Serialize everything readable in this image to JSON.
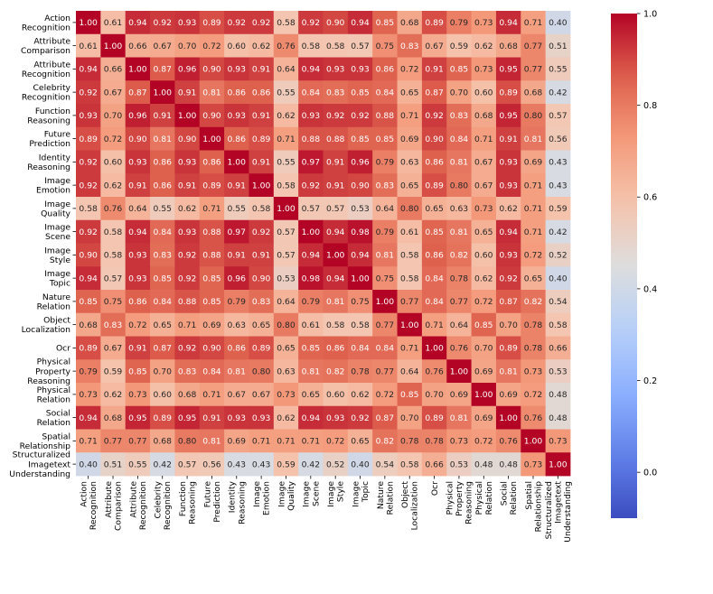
{
  "chart_data": {
    "type": "heatmap",
    "title": "",
    "xlabel": "",
    "ylabel": "",
    "labels": [
      [
        "Action",
        "Recognition"
      ],
      [
        "Attribute",
        "Comparison"
      ],
      [
        "Attribute",
        "Recognition"
      ],
      [
        "Celebrity",
        "Recognition"
      ],
      [
        "Function",
        "Reasoning"
      ],
      [
        "Future",
        "Prediction"
      ],
      [
        "Identity",
        "Reasoning"
      ],
      [
        "Image",
        "Emotion"
      ],
      [
        "Image",
        "Quality"
      ],
      [
        "Image",
        "Scene"
      ],
      [
        "Image",
        "Style"
      ],
      [
        "Image",
        "Topic"
      ],
      [
        "Nature",
        "Relation"
      ],
      [
        "Object",
        "Localization"
      ],
      [
        "Ocr"
      ],
      [
        "Physical",
        "Property",
        "Reasoning"
      ],
      [
        "Physical",
        "Relation"
      ],
      [
        "Social",
        "Relation"
      ],
      [
        "Spatial",
        "Relationship"
      ],
      [
        "Structuralized",
        "Imagetext",
        "Understanding"
      ]
    ],
    "matrix": [
      [
        1.0,
        0.61,
        0.94,
        0.92,
        0.93,
        0.89,
        0.92,
        0.92,
        0.58,
        0.92,
        0.9,
        0.94,
        0.85,
        0.68,
        0.89,
        0.79,
        0.73,
        0.94,
        0.71,
        0.4
      ],
      [
        0.61,
        1.0,
        0.66,
        0.67,
        0.7,
        0.72,
        0.6,
        0.62,
        0.76,
        0.58,
        0.58,
        0.57,
        0.75,
        0.83,
        0.67,
        0.59,
        0.62,
        0.68,
        0.77,
        0.51
      ],
      [
        0.94,
        0.66,
        1.0,
        0.87,
        0.96,
        0.9,
        0.93,
        0.91,
        0.64,
        0.94,
        0.93,
        0.93,
        0.86,
        0.72,
        0.91,
        0.85,
        0.73,
        0.95,
        0.77,
        0.55
      ],
      [
        0.92,
        0.67,
        0.87,
        1.0,
        0.91,
        0.81,
        0.86,
        0.86,
        0.55,
        0.84,
        0.83,
        0.85,
        0.84,
        0.65,
        0.87,
        0.7,
        0.6,
        0.89,
        0.68,
        0.42
      ],
      [
        0.93,
        0.7,
        0.96,
        0.91,
        1.0,
        0.9,
        0.93,
        0.91,
        0.62,
        0.93,
        0.92,
        0.92,
        0.88,
        0.71,
        0.92,
        0.83,
        0.68,
        0.95,
        0.8,
        0.57
      ],
      [
        0.89,
        0.72,
        0.9,
        0.81,
        0.9,
        1.0,
        0.86,
        0.89,
        0.71,
        0.88,
        0.88,
        0.85,
        0.85,
        0.69,
        0.9,
        0.84,
        0.71,
        0.91,
        0.81,
        0.56
      ],
      [
        0.92,
        0.6,
        0.93,
        0.86,
        0.93,
        0.86,
        1.0,
        0.91,
        0.55,
        0.97,
        0.91,
        0.96,
        0.79,
        0.63,
        0.86,
        0.81,
        0.67,
        0.93,
        0.69,
        0.43
      ],
      [
        0.92,
        0.62,
        0.91,
        0.86,
        0.91,
        0.89,
        0.91,
        1.0,
        0.58,
        0.92,
        0.91,
        0.9,
        0.83,
        0.65,
        0.89,
        0.8,
        0.67,
        0.93,
        0.71,
        0.43
      ],
      [
        0.58,
        0.76,
        0.64,
        0.55,
        0.62,
        0.71,
        0.55,
        0.58,
        1.0,
        0.57,
        0.57,
        0.53,
        0.64,
        0.8,
        0.65,
        0.63,
        0.73,
        0.62,
        0.71,
        0.59
      ],
      [
        0.92,
        0.58,
        0.94,
        0.84,
        0.93,
        0.88,
        0.97,
        0.92,
        0.57,
        1.0,
        0.94,
        0.98,
        0.79,
        0.61,
        0.85,
        0.81,
        0.65,
        0.94,
        0.71,
        0.42
      ],
      [
        0.9,
        0.58,
        0.93,
        0.83,
        0.92,
        0.88,
        0.91,
        0.91,
        0.57,
        0.94,
        1.0,
        0.94,
        0.81,
        0.58,
        0.86,
        0.82,
        0.6,
        0.93,
        0.72,
        0.52
      ],
      [
        0.94,
        0.57,
        0.93,
        0.85,
        0.92,
        0.85,
        0.96,
        0.9,
        0.53,
        0.98,
        0.94,
        1.0,
        0.75,
        0.58,
        0.84,
        0.78,
        0.62,
        0.92,
        0.65,
        0.4
      ],
      [
        0.85,
        0.75,
        0.86,
        0.84,
        0.88,
        0.85,
        0.79,
        0.83,
        0.64,
        0.79,
        0.81,
        0.75,
        1.0,
        0.77,
        0.84,
        0.77,
        0.72,
        0.87,
        0.82,
        0.54
      ],
      [
        0.68,
        0.83,
        0.72,
        0.65,
        0.71,
        0.69,
        0.63,
        0.65,
        0.8,
        0.61,
        0.58,
        0.58,
        0.77,
        1.0,
        0.71,
        0.64,
        0.85,
        0.7,
        0.78,
        0.58
      ],
      [
        0.89,
        0.67,
        0.91,
        0.87,
        0.92,
        0.9,
        0.86,
        0.89,
        0.65,
        0.85,
        0.86,
        0.84,
        0.84,
        0.71,
        1.0,
        0.76,
        0.7,
        0.89,
        0.78,
        0.66
      ],
      [
        0.79,
        0.59,
        0.85,
        0.7,
        0.83,
        0.84,
        0.81,
        0.8,
        0.63,
        0.81,
        0.82,
        0.78,
        0.77,
        0.64,
        0.76,
        1.0,
        0.69,
        0.81,
        0.73,
        0.53
      ],
      [
        0.73,
        0.62,
        0.73,
        0.6,
        0.68,
        0.71,
        0.67,
        0.67,
        0.73,
        0.65,
        0.6,
        0.62,
        0.72,
        0.85,
        0.7,
        0.69,
        1.0,
        0.69,
        0.72,
        0.48
      ],
      [
        0.94,
        0.68,
        0.95,
        0.89,
        0.95,
        0.91,
        0.93,
        0.93,
        0.62,
        0.94,
        0.93,
        0.92,
        0.87,
        0.7,
        0.89,
        0.81,
        0.69,
        1.0,
        0.76,
        0.48
      ],
      [
        0.71,
        0.77,
        0.77,
        0.68,
        0.8,
        0.81,
        0.69,
        0.71,
        0.71,
        0.71,
        0.72,
        0.65,
        0.82,
        0.78,
        0.78,
        0.73,
        0.72,
        0.76,
        1.0,
        0.73
      ],
      [
        0.4,
        0.51,
        0.55,
        0.42,
        0.57,
        0.56,
        0.43,
        0.43,
        0.59,
        0.42,
        0.52,
        0.4,
        0.54,
        0.58,
        0.66,
        0.53,
        0.48,
        0.48,
        0.73,
        1.0
      ]
    ],
    "colormap": "coolwarm",
    "vmin": -0.1,
    "vmax": 1.0,
    "colorbar_ticks": [
      0.0,
      0.2,
      0.4,
      0.6,
      0.8,
      1.0
    ],
    "colorbar_tick_labels": [
      "0.0",
      "0.2",
      "0.4",
      "0.6",
      "0.8",
      "1.0"
    ],
    "value_format": "2dp"
  }
}
